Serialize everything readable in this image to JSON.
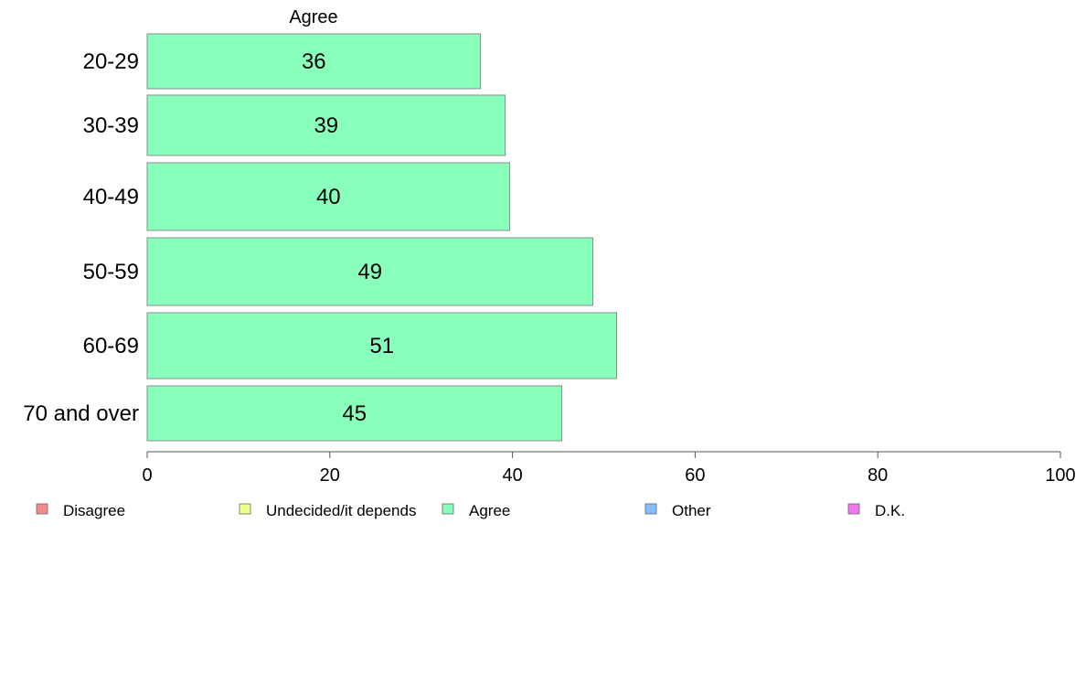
{
  "chart_data": {
    "type": "bar",
    "orientation": "horizontal",
    "title": "Agree",
    "categories": [
      "20-29",
      "30-39",
      "40-49",
      "50-59",
      "60-69",
      "70 and over"
    ],
    "series": [
      {
        "name": "Agree",
        "values": [
          36.5,
          39.2,
          39.7,
          48.8,
          51.4,
          45.4
        ],
        "labels": [
          "36",
          "39",
          "40",
          "49",
          "51",
          "45"
        ]
      }
    ],
    "xlim": [
      0,
      100
    ],
    "xticks": [
      0,
      20,
      40,
      60,
      80,
      100
    ],
    "xtick_labels": [
      "0",
      "20",
      "40",
      "60",
      "80",
      "100"
    ],
    "grid": false,
    "bar_color": "#88ffbb",
    "legend_position": "bottom",
    "legend": [
      {
        "label": "Disagree",
        "color": "#f28a8a"
      },
      {
        "label": "Undecided/it depends",
        "color": "#eeff88"
      },
      {
        "label": "Agree",
        "color": "#88ffbb"
      },
      {
        "label": "Other",
        "color": "#88bbff"
      },
      {
        "label": "D.K.",
        "color": "#ee77ee"
      }
    ]
  }
}
